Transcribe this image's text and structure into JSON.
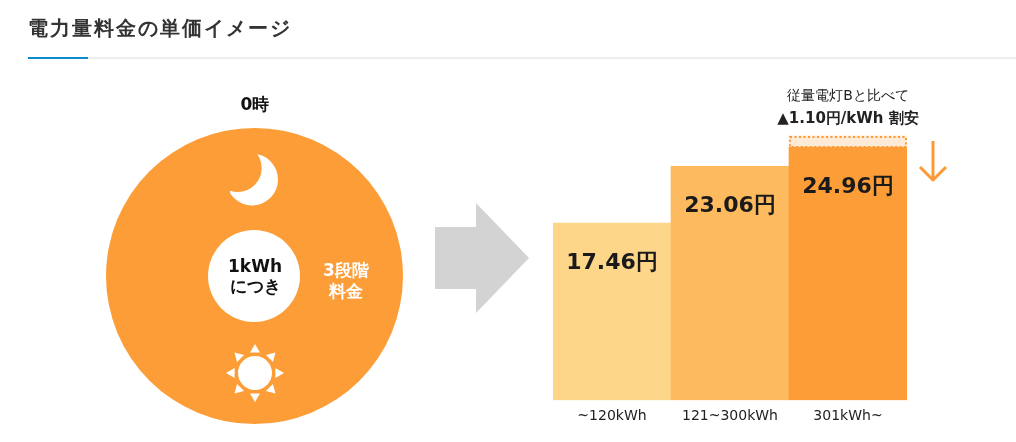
{
  "chart_data": {
    "type": "bar",
    "title": "電力量料金の単価イメージ",
    "categories": [
      "~120kWh",
      "121~300kWh",
      "301kWh~"
    ],
    "series": [
      {
        "colors": [
          "#fed68a",
          "#fdba5f",
          "#fd9d38"
        ],
        "values": [
          17.46,
          23.06,
          24.96
        ],
        "value_labels": [
          "17.46円",
          "23.06円",
          "24.96円"
        ]
      },
      {
        "color": "#fb9a35",
        "values": [
          null,
          null,
          1.1
        ],
        "line_style": "dotted"
      }
    ],
    "stacked": true,
    "tick_labels": "x",
    "grid": false,
    "legend": false,
    "annotations": [
      "0時",
      "1kWh\nにつき",
      "3段階料金",
      "従量電灯Bと比べて",
      {
        "text": "▲1.10円/kWh 割安",
        "x": "301kWh~",
        "y": 26.06
      }
    ]
  }
}
